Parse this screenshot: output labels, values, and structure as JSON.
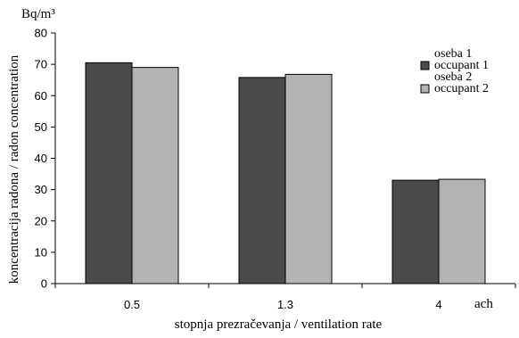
{
  "chart_data": {
    "type": "bar",
    "categories": [
      "0.5",
      "1.3",
      "4"
    ],
    "series": [
      {
        "name_lines": [
          "oseba 1",
          "occupant 1"
        ],
        "values": [
          70.5,
          65.8,
          33.0
        ],
        "color": "#4a4a4a"
      },
      {
        "name_lines": [
          "oseba 2",
          "occupant 2"
        ],
        "values": [
          69.0,
          66.8,
          33.3
        ],
        "color": "#b3b3b3"
      }
    ],
    "ylim": [
      0,
      80
    ],
    "yticks": [
      0,
      10,
      20,
      30,
      40,
      50,
      60,
      70,
      80
    ],
    "ylabel": "koncentracija radona / radon concentration",
    "yunit": "Bq/m³",
    "xlabel": "stopnja prezračevanja / ventilation rate",
    "xunit": "ach",
    "legend_position": "top-right",
    "grid": false
  }
}
